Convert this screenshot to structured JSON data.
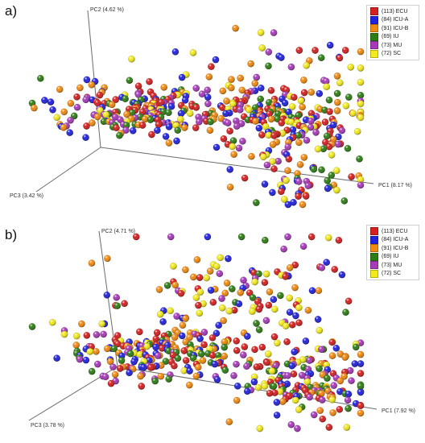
{
  "panels": [
    {
      "label": "a)",
      "axes": {
        "pc1": "PC1 (8.17 %)",
        "pc2": "PC2 (4.62 %)",
        "pc3": "PC3 (3.42 %)"
      },
      "legend": [
        {
          "label": "(113) ECU",
          "color": "#d42020"
        },
        {
          "label": "(84) ICU-A",
          "color": "#2222dd"
        },
        {
          "label": "(91) ICU-B",
          "color": "#f08a10"
        },
        {
          "label": "(69) IU",
          "color": "#2e7d14"
        },
        {
          "label": "(73) MU",
          "color": "#a63ab8"
        },
        {
          "label": "(72) SC",
          "color": "#f2ea1c"
        }
      ]
    },
    {
      "label": "b)",
      "axes": {
        "pc1": "PC1 (7.92 %)",
        "pc2": "PC2 (4.71 %)",
        "pc3": "PC3 (3.78 %)"
      },
      "legend": [
        {
          "label": "(113) ECU",
          "color": "#d42020"
        },
        {
          "label": "(84) ICU-A",
          "color": "#2222dd"
        },
        {
          "label": "(91) ICU-B",
          "color": "#f08a10"
        },
        {
          "label": "(69) IU",
          "color": "#2e7d14"
        },
        {
          "label": "(73) MU",
          "color": "#a63ab8"
        },
        {
          "label": "(72) SC",
          "color": "#f2ea1c"
        }
      ]
    }
  ],
  "chart_data": [
    {
      "type": "scatter",
      "subtype": "3d-pca",
      "title": "",
      "axes": [
        "PC1 (8.17 %)",
        "PC2 (4.62 %)",
        "PC3 (3.42 %)"
      ],
      "series": [
        {
          "name": "(113) ECU",
          "color": "#d42020",
          "n": 113
        },
        {
          "name": "(84) ICU-A",
          "color": "#2222dd",
          "n": 84
        },
        {
          "name": "(91) ICU-B",
          "color": "#f08a10",
          "n": 91
        },
        {
          "name": "(69) IU",
          "color": "#2e7d14",
          "n": 69
        },
        {
          "name": "(73) MU",
          "color": "#a63ab8",
          "n": 73
        },
        {
          "name": "(72) SC",
          "color": "#f2ea1c",
          "n": 72
        }
      ],
      "legend_position": "top-right",
      "grid": false
    },
    {
      "type": "scatter",
      "subtype": "3d-pca",
      "title": "",
      "axes": [
        "PC1 (7.92 %)",
        "PC2 (4.71 %)",
        "PC3 (3.78 %)"
      ],
      "series": [
        {
          "name": "(113) ECU",
          "color": "#d42020",
          "n": 113
        },
        {
          "name": "(84) ICU-A",
          "color": "#2222dd",
          "n": 84
        },
        {
          "name": "(91) ICU-B",
          "color": "#f08a10",
          "n": 91
        },
        {
          "name": "(69) IU",
          "color": "#2e7d14",
          "n": 69
        },
        {
          "name": "(73) MU",
          "color": "#a63ab8",
          "n": 73
        },
        {
          "name": "(72) SC",
          "color": "#f2ea1c",
          "n": 72
        }
      ],
      "legend_position": "top-right",
      "grid": false
    }
  ]
}
